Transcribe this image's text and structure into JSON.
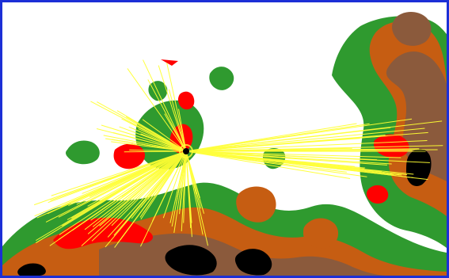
{
  "map": {
    "legend_colors": {
      "background": "#ffffff",
      "frame": "#1c2fd6",
      "low_elevation": "#2f9a2f",
      "mid_elevation": "#c65d12",
      "high_elevation": "#8b5a3c",
      "peak_elevation": "#000000",
      "viewshed_visible": "#ff0000",
      "sight_lines": "#ffff33"
    },
    "icons": [
      "observer-point-icon"
    ],
    "sight_lines_count": 140
  }
}
